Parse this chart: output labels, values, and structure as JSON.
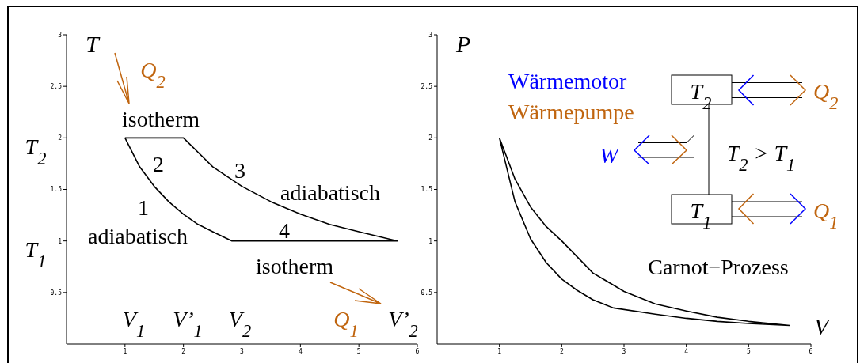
{
  "chart_data": [
    {
      "type": "line",
      "ylabel": "T",
      "xlim": [
        0,
        6
      ],
      "ylim": [
        0,
        3
      ],
      "xticks": [
        1,
        2,
        3,
        4,
        5,
        6
      ],
      "yticks": [
        0.5,
        1,
        1.5,
        2,
        2.5,
        3
      ],
      "annotations": [
        "Q$_{2}$",
        "isotherm",
        "2",
        "3",
        "adiabatisch",
        "1",
        "4",
        "adiabatisch",
        "isotherm",
        "Q$_{1}$",
        "T$_{2}$",
        "T$_{1}$",
        "V$_{1}$",
        "V’$_{1}$",
        "V$_{2}$",
        "V’$_{2}$"
      ]
    },
    {
      "type": "line",
      "xlabel": "V",
      "ylabel": "P",
      "xlim": [
        0,
        6
      ],
      "ylim": [
        0,
        3
      ],
      "xticks": [
        1,
        2,
        3,
        4,
        5,
        6
      ],
      "yticks": [
        0.5,
        1,
        1.5,
        2,
        2.5,
        3
      ],
      "annotations": [
        "Wärmemotor",
        "Wärmepumpe",
        "T$_{2}$",
        "T$_{1}$",
        "W",
        "Q$_{2}$",
        "Q$_{1}$",
        "T$_{2}$ > T$_{1}$",
        "Carnot−Prozess"
      ]
    }
  ]
}
